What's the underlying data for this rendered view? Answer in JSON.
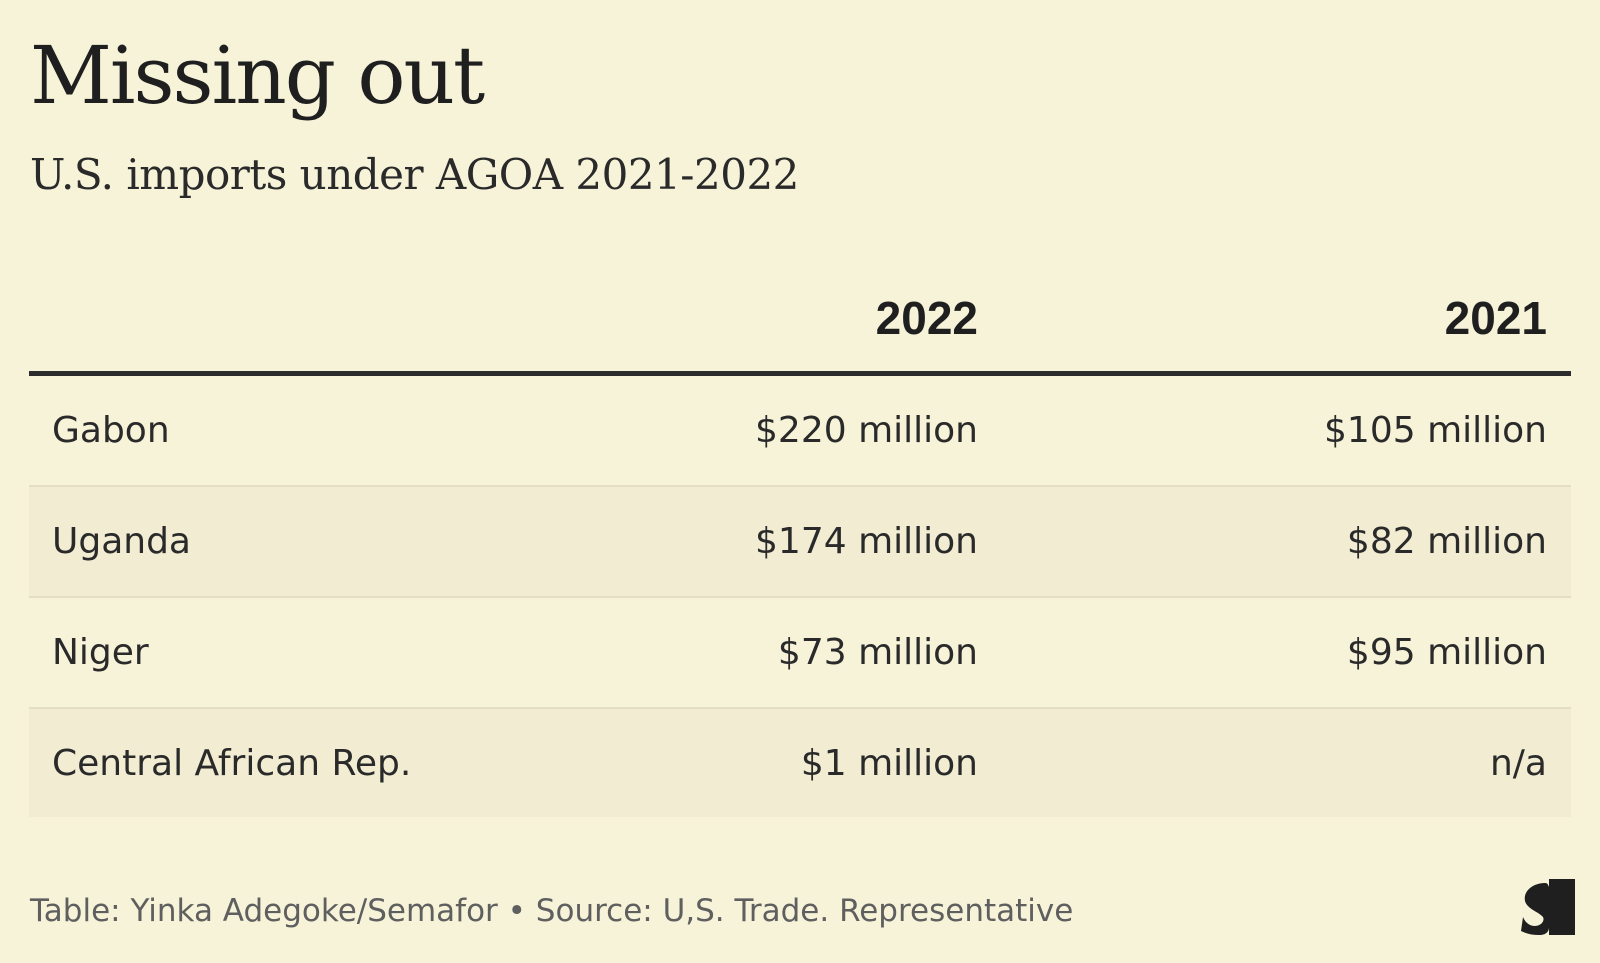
{
  "title": "Missing out",
  "subtitle": "U.S. imports under AGOA 2021-2022",
  "chart_data": {
    "type": "table",
    "columns": [
      "",
      "2022",
      "2021"
    ],
    "rows": [
      {
        "country": "Gabon",
        "v2022": "$220 million",
        "v2021": "$105 million"
      },
      {
        "country": "Uganda",
        "v2022": "$174 million",
        "v2021": "$82 million"
      },
      {
        "country": "Niger",
        "v2022": "$73 million",
        "v2021": "$95 million"
      },
      {
        "country": "Central African Rep.",
        "v2022": "$1 million",
        "v2021": "n/a"
      }
    ]
  },
  "footer": "Table: Yinka Adegoke/Semafor • Source: U,S. Trade. Representative",
  "colors": {
    "background": "#f7f3d9",
    "row_shade": "#f1ecd2",
    "header_rule": "#2c2c2c",
    "text": "#222222"
  },
  "logo_icon": "semafor-logo-icon"
}
